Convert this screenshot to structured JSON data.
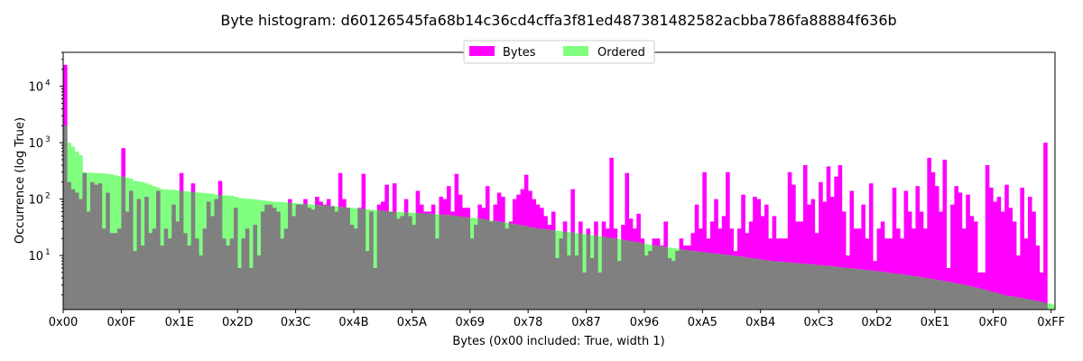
{
  "chart_data": {
    "type": "bar",
    "title": "Byte histogram: d60126545fa68b14c36cd4cffa3f81ed487381482582acbba786fa88884f636b",
    "xlabel": "Bytes (0x00 included: True, width 1)",
    "ylabel": "Occurrence (log True)",
    "y_scale": "log",
    "ylim": [
      1.1,
      40000
    ],
    "xlim": [
      0,
      256
    ],
    "x_ticks": [
      {
        "value": 0,
        "label": "0x00"
      },
      {
        "value": 15,
        "label": "0x0F"
      },
      {
        "value": 30,
        "label": "0x1E"
      },
      {
        "value": 45,
        "label": "0x2D"
      },
      {
        "value": 60,
        "label": "0x3C"
      },
      {
        "value": 75,
        "label": "0x4B"
      },
      {
        "value": 90,
        "label": "0x5A"
      },
      {
        "value": 105,
        "label": "0x69"
      },
      {
        "value": 120,
        "label": "0x78"
      },
      {
        "value": 135,
        "label": "0x87"
      },
      {
        "value": 150,
        "label": "0x96"
      },
      {
        "value": 165,
        "label": "0xA5"
      },
      {
        "value": 180,
        "label": "0xB4"
      },
      {
        "value": 195,
        "label": "0xC3"
      },
      {
        "value": 210,
        "label": "0xD2"
      },
      {
        "value": 225,
        "label": "0xE1"
      },
      {
        "value": 240,
        "label": "0xF0"
      },
      {
        "value": 255,
        "label": "0xFF"
      }
    ],
    "y_ticks": [
      {
        "value": 10,
        "base": "10",
        "exp": "1"
      },
      {
        "value": 100,
        "base": "10",
        "exp": "2"
      },
      {
        "value": 1000,
        "base": "10",
        "exp": "3"
      },
      {
        "value": 10000,
        "base": "10",
        "exp": "4"
      }
    ],
    "legend_position": "top-center",
    "overlap_color": "#808080",
    "series": [
      {
        "name": "Bytes",
        "color": "#ff00ff",
        "values": [
          24000,
          200,
          150,
          130,
          100,
          290,
          60,
          200,
          180,
          190,
          30,
          130,
          25,
          25,
          30,
          800,
          60,
          140,
          12,
          100,
          15,
          110,
          25,
          30,
          140,
          15,
          30,
          20,
          80,
          40,
          290,
          25,
          15,
          190,
          20,
          10,
          30,
          90,
          50,
          100,
          210,
          20,
          15,
          20,
          70,
          6,
          20,
          30,
          6,
          35,
          10,
          60,
          80,
          80,
          70,
          60,
          20,
          30,
          100,
          50,
          80,
          80,
          100,
          70,
          65,
          110,
          90,
          80,
          100,
          75,
          60,
          290,
          100,
          70,
          35,
          30,
          70,
          280,
          12,
          60,
          6,
          80,
          90,
          180,
          60,
          190,
          45,
          50,
          100,
          50,
          35,
          140,
          80,
          60,
          60,
          80,
          20,
          110,
          100,
          170,
          60,
          280,
          120,
          70,
          70,
          20,
          35,
          80,
          70,
          170,
          40,
          80,
          130,
          110,
          30,
          40,
          100,
          120,
          150,
          270,
          140,
          100,
          80,
          70,
          50,
          35,
          60,
          9,
          20,
          40,
          10,
          150,
          10,
          40,
          5,
          30,
          9,
          40,
          5,
          40,
          30,
          540,
          30,
          8,
          35,
          290,
          45,
          30,
          55,
          20,
          10,
          12,
          20,
          20,
          15,
          40,
          9,
          8,
          12,
          20,
          15,
          15,
          25,
          80,
          30,
          300,
          20,
          40,
          100,
          30,
          50,
          300,
          30,
          12,
          30,
          120,
          25,
          40,
          110,
          100,
          50,
          80,
          20,
          50,
          20,
          20,
          20,
          300,
          180,
          40,
          40,
          400,
          80,
          100,
          25,
          200,
          90,
          380,
          110,
          250,
          400,
          60,
          10,
          140,
          30,
          30,
          80,
          20,
          190,
          8,
          30,
          40,
          20,
          20,
          160,
          30,
          20,
          140,
          60,
          30,
          170,
          60,
          30,
          540,
          300,
          170,
          60,
          500,
          6,
          80,
          170,
          130,
          30,
          120,
          50,
          40,
          5,
          5,
          400,
          160,
          90,
          110,
          60,
          180,
          70,
          40,
          10,
          160,
          20,
          110,
          60,
          15,
          5,
          1000
        ]
      },
      {
        "name": "Ordered",
        "color": "#80ff80",
        "values": [
          2000,
          1000,
          850,
          700,
          600,
          300,
          295,
          293,
          290,
          288,
          285,
          280,
          275,
          265,
          255,
          250,
          240,
          230,
          210,
          205,
          200,
          190,
          180,
          170,
          160,
          150,
          148,
          146,
          145,
          143,
          140,
          138,
          136,
          134,
          132,
          130,
          128,
          126,
          125,
          120,
          118,
          117,
          116,
          115,
          110,
          105,
          103,
          101,
          100,
          99,
          97,
          95,
          93,
          92,
          90,
          89,
          88,
          87,
          86,
          85,
          84,
          83,
          82,
          81,
          80,
          79,
          78,
          77,
          76,
          75,
          74,
          73,
          72,
          71,
          70,
          69,
          68,
          67,
          66,
          65,
          64,
          63,
          62,
          61,
          60,
          59.5,
          59,
          58.5,
          58,
          57.5,
          57,
          56.5,
          56,
          55.5,
          55,
          54,
          53.5,
          53,
          52.5,
          52,
          51,
          50,
          49,
          48,
          47,
          46.5,
          46,
          45,
          44,
          43,
          42,
          41,
          40,
          39,
          38,
          37,
          36,
          35,
          34,
          33,
          32,
          31,
          30,
          29.5,
          29,
          28.5,
          28,
          27.5,
          27,
          26.5,
          26,
          25.5,
          25,
          24.5,
          24,
          23.5,
          23,
          22.5,
          22,
          21.5,
          21,
          20.5,
          20,
          19.5,
          19,
          18.5,
          18,
          17.5,
          17,
          16.5,
          16,
          15.5,
          15,
          14.7,
          14.4,
          14.1,
          13.8,
          13.5,
          13.2,
          12.9,
          12.6,
          12.3,
          12,
          11.8,
          11.6,
          11.4,
          11.2,
          11,
          10.8,
          10.6,
          10.4,
          10.2,
          10,
          9.8,
          9.6,
          9.4,
          9.2,
          9,
          8.8,
          8.6,
          8.4,
          8.2,
          8,
          7.9,
          7.8,
          7.7,
          7.6,
          7.5,
          7.4,
          7.3,
          7.2,
          7.1,
          7,
          6.9,
          6.8,
          6.7,
          6.6,
          6.5,
          6.4,
          6.3,
          6.2,
          6.1,
          6,
          5.9,
          5.8,
          5.7,
          5.6,
          5.5,
          5.4,
          5.3,
          5.2,
          5.1,
          5,
          4.9,
          4.8,
          4.7,
          4.6,
          4.5,
          4.4,
          4.3,
          4.2,
          4.1,
          4,
          3.9,
          3.8,
          3.7,
          3.6,
          3.5,
          3.4,
          3.3,
          3.2,
          3.1,
          3,
          2.9,
          2.8,
          2.7,
          2.6,
          2.5,
          2.4,
          2.3,
          2.2,
          2.1,
          2,
          1.95,
          1.9,
          1.85,
          1.8,
          1.75,
          1.7,
          1.65,
          1.6,
          1.55,
          1.5,
          1.45,
          1.4,
          1.35,
          1.3,
          1.25,
          1.2
        ]
      }
    ]
  }
}
